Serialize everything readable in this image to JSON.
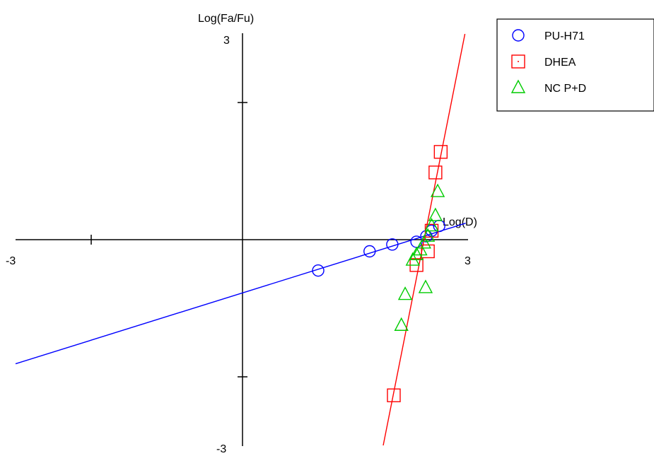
{
  "chart_data": {
    "type": "scatter",
    "title": "",
    "xlabel": "Log(D)",
    "ylabel": "Log(Fa/Fu)",
    "xlim": [
      -3,
      3
    ],
    "ylim": [
      -3,
      3
    ],
    "x_tick_labels": {
      "min": "-3",
      "max": "3"
    },
    "y_tick_labels": {
      "min": "-3",
      "max": "3"
    },
    "grid": false,
    "legend_position": "top-right",
    "series": [
      {
        "name": "PU-H71",
        "color": "#0000ff",
        "marker": "circle",
        "points": [
          [
            1.0,
            -0.45
          ],
          [
            1.68,
            -0.17
          ],
          [
            1.98,
            -0.07
          ],
          [
            2.3,
            -0.03
          ],
          [
            2.43,
            0.05
          ],
          [
            2.5,
            0.13
          ],
          [
            2.6,
            0.2
          ]
        ],
        "fit_line": [
          [
            -3.0,
            -1.81
          ],
          [
            2.95,
            0.24
          ]
        ]
      },
      {
        "name": "DHEA",
        "color": "#ff0000",
        "marker": "square",
        "points": [
          [
            2.0,
            -2.27
          ],
          [
            2.3,
            -0.37
          ],
          [
            2.45,
            -0.17
          ],
          [
            2.5,
            0.13
          ],
          [
            2.55,
            0.98
          ],
          [
            2.62,
            1.28
          ]
        ],
        "fit_line": [
          [
            1.86,
            -3.0
          ],
          [
            2.94,
            3.0
          ]
        ]
      },
      {
        "name": "NC P+D",
        "color": "#00cc00",
        "marker": "triangle",
        "points": [
          [
            2.1,
            -1.25
          ],
          [
            2.15,
            -0.8
          ],
          [
            2.25,
            -0.3
          ],
          [
            2.3,
            -0.22
          ],
          [
            2.35,
            -0.15
          ],
          [
            2.4,
            -0.05
          ],
          [
            2.45,
            0.05
          ],
          [
            2.5,
            0.2
          ],
          [
            2.55,
            0.35
          ],
          [
            2.58,
            0.7
          ],
          [
            2.42,
            -0.7
          ]
        ]
      }
    ]
  }
}
